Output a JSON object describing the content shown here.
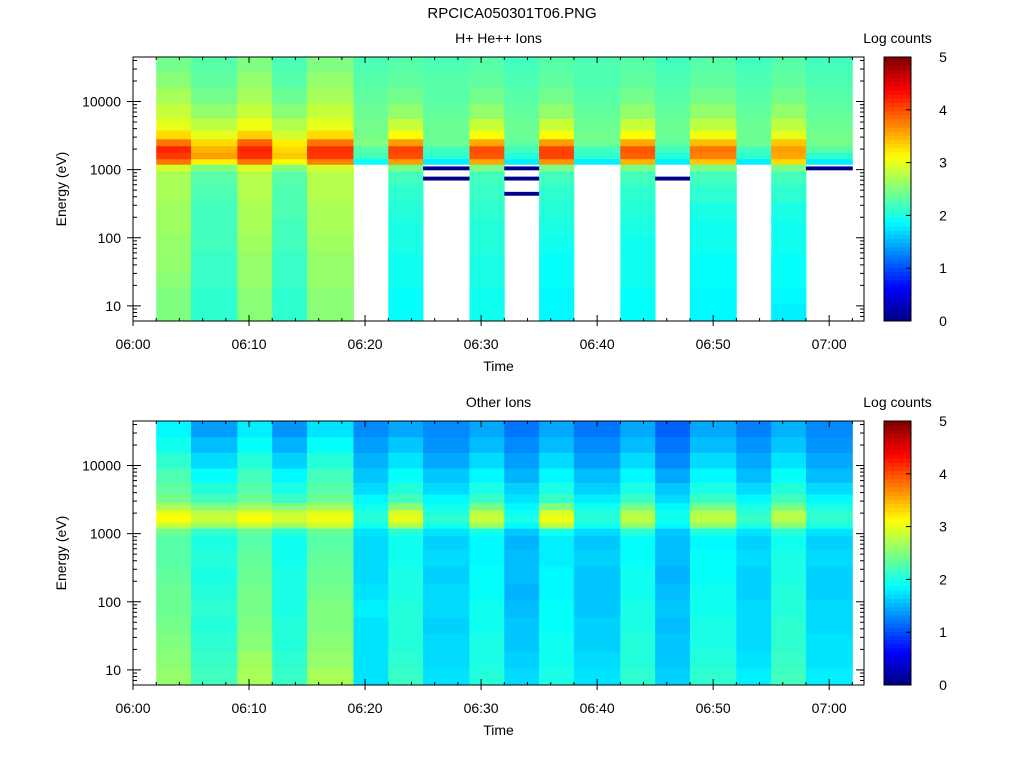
{
  "figure": {
    "title": "RPCICA050301T06.PNG"
  },
  "chart_data": [
    {
      "type": "heatmap",
      "title": "H+ He++ Ions",
      "xlabel": "Time",
      "ylabel": "Energy (eV)",
      "yscale": "log",
      "xlim": [
        "06:00",
        "07:03"
      ],
      "ylim": [
        6,
        45000
      ],
      "x_ticks": [
        "06:00",
        "06:10",
        "06:20",
        "06:30",
        "06:40",
        "06:50",
        "07:00"
      ],
      "y_ticks": [
        "10",
        "100",
        "1000",
        "10000"
      ],
      "colorbar": {
        "label": "Log counts",
        "range": [
          0,
          5
        ],
        "ticks": [
          "0",
          "1",
          "2",
          "3",
          "4",
          "5"
        ],
        "colormap": "jet"
      },
      "time_bins": [
        "06:02-06:05",
        "06:05-06:09",
        "06:09-06:12",
        "06:12-06:15",
        "06:15-06:19",
        "06:19-06:22",
        "06:22-06:25",
        "06:25-06:29",
        "06:29-06:32",
        "06:32-06:35",
        "06:35-06:38",
        "06:38-06:42",
        "06:42-06:45",
        "06:45-06:48",
        "06:48-06:52",
        "06:52-06:55",
        "06:55-06:58",
        "06:58-07:02"
      ],
      "energy_bins_eV": [
        8,
        14,
        25,
        45,
        80,
        140,
        250,
        450,
        800,
        1100,
        1300,
        1600,
        2000,
        2500,
        3200,
        4500,
        7000,
        12000,
        20000,
        35000
      ],
      "log_counts": [
        [
          2.5,
          2.5,
          2.55,
          2.6,
          2.6,
          2.65,
          2.65,
          2.7,
          2.7,
          2.9,
          3.8,
          4.1,
          4.2,
          3.8,
          3.3,
          3.0,
          2.85,
          2.7,
          2.55,
          2.45
        ],
        [
          2.1,
          2.1,
          2.15,
          2.15,
          2.2,
          2.2,
          2.2,
          2.25,
          2.3,
          2.5,
          3.2,
          3.6,
          3.5,
          3.3,
          3.0,
          2.8,
          2.6,
          2.45,
          2.35,
          2.3
        ],
        [
          2.55,
          2.55,
          2.6,
          2.6,
          2.65,
          2.7,
          2.7,
          2.75,
          2.75,
          2.95,
          3.8,
          4.15,
          4.2,
          3.9,
          3.35,
          3.05,
          2.85,
          2.7,
          2.6,
          2.5
        ],
        [
          2.1,
          2.1,
          2.15,
          2.15,
          2.2,
          2.2,
          2.25,
          2.25,
          2.3,
          2.5,
          3.1,
          3.4,
          3.3,
          3.2,
          2.9,
          2.75,
          2.55,
          2.4,
          2.3,
          2.25
        ],
        [
          2.55,
          2.55,
          2.6,
          2.6,
          2.65,
          2.7,
          2.7,
          2.75,
          2.75,
          2.9,
          3.75,
          4.1,
          4.15,
          3.8,
          3.3,
          3.0,
          2.85,
          2.7,
          2.6,
          2.5
        ],
        [
          null,
          null,
          null,
          null,
          null,
          null,
          null,
          null,
          null,
          null,
          1.9,
          2.2,
          2.3,
          2.5,
          2.45,
          2.45,
          2.4,
          2.35,
          2.3,
          2.25
        ],
        [
          1.9,
          1.9,
          1.95,
          1.95,
          2.0,
          2.0,
          2.05,
          2.1,
          2.2,
          2.45,
          3.6,
          4.0,
          4.05,
          3.6,
          3.1,
          2.85,
          2.6,
          2.45,
          2.35,
          2.3
        ],
        [
          null,
          null,
          null,
          null,
          null,
          null,
          null,
          null,
          0.05,
          0.05,
          1.8,
          2.1,
          2.2,
          2.4,
          2.4,
          2.4,
          2.35,
          2.3,
          2.3,
          2.25
        ],
        [
          1.95,
          1.95,
          2.0,
          2.0,
          2.05,
          2.05,
          2.1,
          2.15,
          2.2,
          2.45,
          3.55,
          3.95,
          4.0,
          3.55,
          3.1,
          2.85,
          2.6,
          2.45,
          2.35,
          2.3
        ],
        [
          null,
          null,
          null,
          null,
          null,
          null,
          null,
          0.05,
          0.05,
          0.05,
          1.8,
          2.05,
          2.2,
          2.35,
          2.4,
          2.4,
          2.35,
          2.3,
          2.25,
          2.2
        ],
        [
          1.85,
          1.85,
          1.9,
          1.9,
          1.95,
          2.0,
          2.05,
          2.1,
          2.2,
          2.45,
          3.65,
          4.05,
          4.05,
          3.6,
          3.1,
          2.85,
          2.6,
          2.45,
          2.35,
          2.3
        ],
        [
          null,
          null,
          null,
          null,
          null,
          null,
          null,
          null,
          null,
          null,
          1.8,
          2.1,
          2.2,
          2.4,
          2.45,
          2.4,
          2.35,
          2.3,
          2.25,
          2.25
        ],
        [
          1.9,
          1.9,
          1.95,
          1.95,
          1.95,
          2.0,
          2.05,
          2.1,
          2.2,
          2.45,
          3.5,
          3.9,
          3.95,
          3.55,
          3.1,
          2.85,
          2.6,
          2.45,
          2.35,
          2.3
        ],
        [
          null,
          null,
          null,
          null,
          null,
          null,
          null,
          null,
          0.05,
          null,
          1.8,
          2.05,
          2.2,
          2.35,
          2.4,
          2.4,
          2.35,
          2.3,
          2.25,
          2.2
        ],
        [
          1.85,
          1.85,
          1.9,
          1.9,
          1.95,
          1.95,
          2.0,
          2.1,
          2.2,
          2.45,
          3.4,
          3.75,
          3.8,
          3.45,
          3.05,
          2.8,
          2.6,
          2.45,
          2.35,
          2.3
        ],
        [
          null,
          null,
          null,
          null,
          null,
          null,
          null,
          null,
          null,
          null,
          1.8,
          2.1,
          2.2,
          2.4,
          2.4,
          2.4,
          2.35,
          2.3,
          2.25,
          2.2
        ],
        [
          1.8,
          1.85,
          1.9,
          1.9,
          1.95,
          1.95,
          2.0,
          2.1,
          2.2,
          2.45,
          3.3,
          3.55,
          3.6,
          3.4,
          3.0,
          2.8,
          2.6,
          2.45,
          2.35,
          2.3
        ],
        [
          null,
          null,
          null,
          null,
          null,
          null,
          null,
          null,
          null,
          0.05,
          1.8,
          2.1,
          2.3,
          2.45,
          2.45,
          2.4,
          2.35,
          2.3,
          2.25,
          2.2
        ]
      ]
    },
    {
      "type": "heatmap",
      "title": "Other Ions",
      "xlabel": "Time",
      "ylabel": "Energy (eV)",
      "yscale": "log",
      "xlim": [
        "06:00",
        "07:03"
      ],
      "ylim": [
        6,
        45000
      ],
      "x_ticks": [
        "06:00",
        "06:10",
        "06:20",
        "06:30",
        "06:40",
        "06:50",
        "07:00"
      ],
      "y_ticks": [
        "10",
        "100",
        "1000",
        "10000"
      ],
      "colorbar": {
        "label": "Log counts",
        "range": [
          0,
          5
        ],
        "ticks": [
          "0",
          "1",
          "2",
          "3",
          "4",
          "5"
        ],
        "colormap": "jet"
      },
      "time_bins": [
        "06:02-06:05",
        "06:05-06:09",
        "06:09-06:12",
        "06:12-06:15",
        "06:15-06:19",
        "06:19-06:22",
        "06:22-06:25",
        "06:25-06:29",
        "06:29-06:32",
        "06:32-06:35",
        "06:35-06:38",
        "06:38-06:42",
        "06:42-06:45",
        "06:45-06:48",
        "06:48-06:52",
        "06:52-06:55",
        "06:55-06:58",
        "06:58-07:02"
      ],
      "energy_bins_eV": [
        8,
        14,
        25,
        45,
        80,
        140,
        250,
        450,
        800,
        1100,
        1300,
        1600,
        2000,
        2500,
        3200,
        4500,
        7000,
        12000,
        20000,
        35000
      ],
      "log_counts": [
        [
          2.6,
          2.55,
          2.5,
          2.45,
          2.4,
          2.4,
          2.35,
          2.3,
          2.3,
          2.4,
          2.8,
          3.1,
          3.05,
          2.7,
          2.45,
          2.35,
          2.25,
          2.1,
          1.95,
          1.85
        ],
        [
          2.2,
          2.15,
          2.1,
          2.05,
          2.1,
          2.05,
          2.0,
          2.05,
          2.0,
          2.1,
          2.6,
          2.85,
          2.8,
          2.5,
          2.2,
          2.05,
          1.9,
          1.7,
          1.55,
          1.4
        ],
        [
          2.7,
          2.65,
          2.55,
          2.5,
          2.45,
          2.45,
          2.4,
          2.35,
          2.3,
          2.35,
          2.8,
          3.1,
          3.0,
          2.65,
          2.4,
          2.3,
          2.2,
          2.05,
          1.9,
          1.8
        ],
        [
          2.15,
          2.1,
          2.05,
          2.05,
          2.0,
          2.0,
          2.0,
          1.95,
          1.95,
          2.05,
          2.6,
          2.9,
          2.85,
          2.5,
          2.15,
          2.0,
          1.85,
          1.65,
          1.5,
          1.35
        ],
        [
          2.7,
          2.6,
          2.55,
          2.5,
          2.5,
          2.45,
          2.4,
          2.35,
          2.3,
          2.35,
          2.85,
          3.05,
          3.0,
          2.65,
          2.4,
          2.3,
          2.2,
          2.05,
          1.9,
          1.75
        ],
        [
          1.75,
          1.75,
          1.75,
          1.75,
          1.8,
          1.75,
          1.7,
          1.7,
          1.7,
          1.75,
          1.95,
          2.05,
          2.05,
          1.95,
          1.85,
          1.7,
          1.6,
          1.5,
          1.4,
          1.3
        ],
        [
          2.15,
          2.1,
          2.05,
          2.05,
          2.05,
          2.0,
          2.0,
          1.95,
          1.95,
          2.05,
          2.7,
          3.0,
          2.95,
          2.55,
          2.2,
          2.05,
          1.9,
          1.75,
          1.6,
          1.45
        ],
        [
          1.75,
          1.7,
          1.7,
          1.65,
          1.7,
          1.7,
          1.65,
          1.7,
          1.65,
          1.75,
          1.95,
          2.1,
          2.05,
          1.95,
          1.85,
          1.7,
          1.6,
          1.45,
          1.35,
          1.3
        ],
        [
          2.05,
          2.0,
          2.0,
          1.95,
          1.95,
          1.9,
          1.9,
          1.85,
          1.85,
          1.95,
          2.6,
          2.85,
          2.8,
          2.45,
          2.15,
          2.0,
          1.85,
          1.7,
          1.55,
          1.45
        ],
        [
          1.7,
          1.65,
          1.6,
          1.6,
          1.55,
          1.5,
          1.55,
          1.55,
          1.5,
          1.6,
          1.85,
          2.0,
          1.95,
          1.85,
          1.75,
          1.65,
          1.5,
          1.4,
          1.3,
          1.2
        ],
        [
          2.0,
          1.95,
          1.95,
          1.9,
          1.9,
          1.85,
          1.85,
          1.8,
          1.8,
          1.95,
          2.75,
          3.05,
          2.95,
          2.5,
          2.15,
          2.0,
          1.85,
          1.7,
          1.55,
          1.45
        ],
        [
          1.75,
          1.7,
          1.65,
          1.65,
          1.6,
          1.6,
          1.6,
          1.65,
          1.6,
          1.7,
          1.95,
          2.05,
          2.05,
          1.95,
          1.8,
          1.65,
          1.55,
          1.4,
          1.3,
          1.2
        ],
        [
          2.1,
          2.05,
          2.05,
          2.0,
          2.0,
          1.95,
          1.95,
          1.9,
          1.9,
          2.05,
          2.55,
          2.8,
          2.75,
          2.45,
          2.15,
          2.0,
          1.85,
          1.7,
          1.55,
          1.45
        ],
        [
          1.65,
          1.6,
          1.6,
          1.55,
          1.6,
          1.55,
          1.5,
          1.55,
          1.55,
          1.6,
          1.85,
          1.95,
          1.95,
          1.85,
          1.7,
          1.6,
          1.45,
          1.3,
          1.2,
          1.1
        ],
        [
          2.1,
          2.05,
          2.0,
          2.0,
          1.95,
          1.95,
          1.9,
          1.9,
          1.85,
          2.0,
          2.55,
          2.8,
          2.75,
          2.45,
          2.15,
          2.0,
          1.85,
          1.7,
          1.55,
          1.45
        ],
        [
          1.8,
          1.75,
          1.7,
          1.7,
          1.7,
          1.65,
          1.65,
          1.7,
          1.65,
          1.75,
          2.0,
          2.15,
          2.1,
          2.0,
          1.85,
          1.7,
          1.55,
          1.45,
          1.35,
          1.25
        ],
        [
          2.2,
          2.15,
          2.1,
          2.1,
          2.05,
          2.05,
          2.0,
          2.0,
          1.95,
          2.05,
          2.5,
          2.75,
          2.75,
          2.45,
          2.2,
          2.05,
          1.9,
          1.75,
          1.6,
          1.5
        ],
        [
          1.8,
          1.75,
          1.75,
          1.7,
          1.7,
          1.65,
          1.65,
          1.7,
          1.65,
          1.75,
          2.0,
          2.1,
          2.1,
          2.0,
          1.85,
          1.7,
          1.55,
          1.45,
          1.35,
          1.3
        ]
      ]
    }
  ]
}
